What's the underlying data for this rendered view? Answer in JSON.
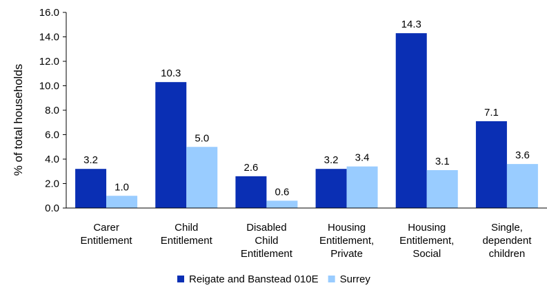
{
  "chart_data": {
    "type": "bar",
    "categories": [
      [
        "Carer",
        "Entitlement"
      ],
      [
        "Child",
        "Entitlement"
      ],
      [
        "Disabled",
        "Child",
        "Entitlement"
      ],
      [
        "Housing",
        "Entitlement,",
        "Private"
      ],
      [
        "Housing",
        "Entitlement,",
        "Social"
      ],
      [
        "Single,",
        "dependent",
        "children"
      ]
    ],
    "series": [
      {
        "name": "Reigate and Banstead 010E",
        "values": [
          3.2,
          10.3,
          2.6,
          3.2,
          14.3,
          7.1
        ],
        "labels": [
          "3.2",
          "10.3",
          "2.6",
          "3.2",
          "14.3",
          "7.1"
        ],
        "color": "#0a2fb4"
      },
      {
        "name": "Surrey",
        "values": [
          1.0,
          5.0,
          0.6,
          3.4,
          3.1,
          3.6
        ],
        "labels": [
          "1.0",
          "5.0",
          "0.6",
          "3.4",
          "3.1",
          "3.6"
        ],
        "color": "#99ccff"
      }
    ],
    "ylabel": "% of total households",
    "ylim": [
      0,
      16
    ],
    "yticks": [
      "0.0",
      "2.0",
      "4.0",
      "6.0",
      "8.0",
      "10.0",
      "12.0",
      "14.0",
      "16.0"
    ],
    "grid": false,
    "legend": "bottom"
  }
}
